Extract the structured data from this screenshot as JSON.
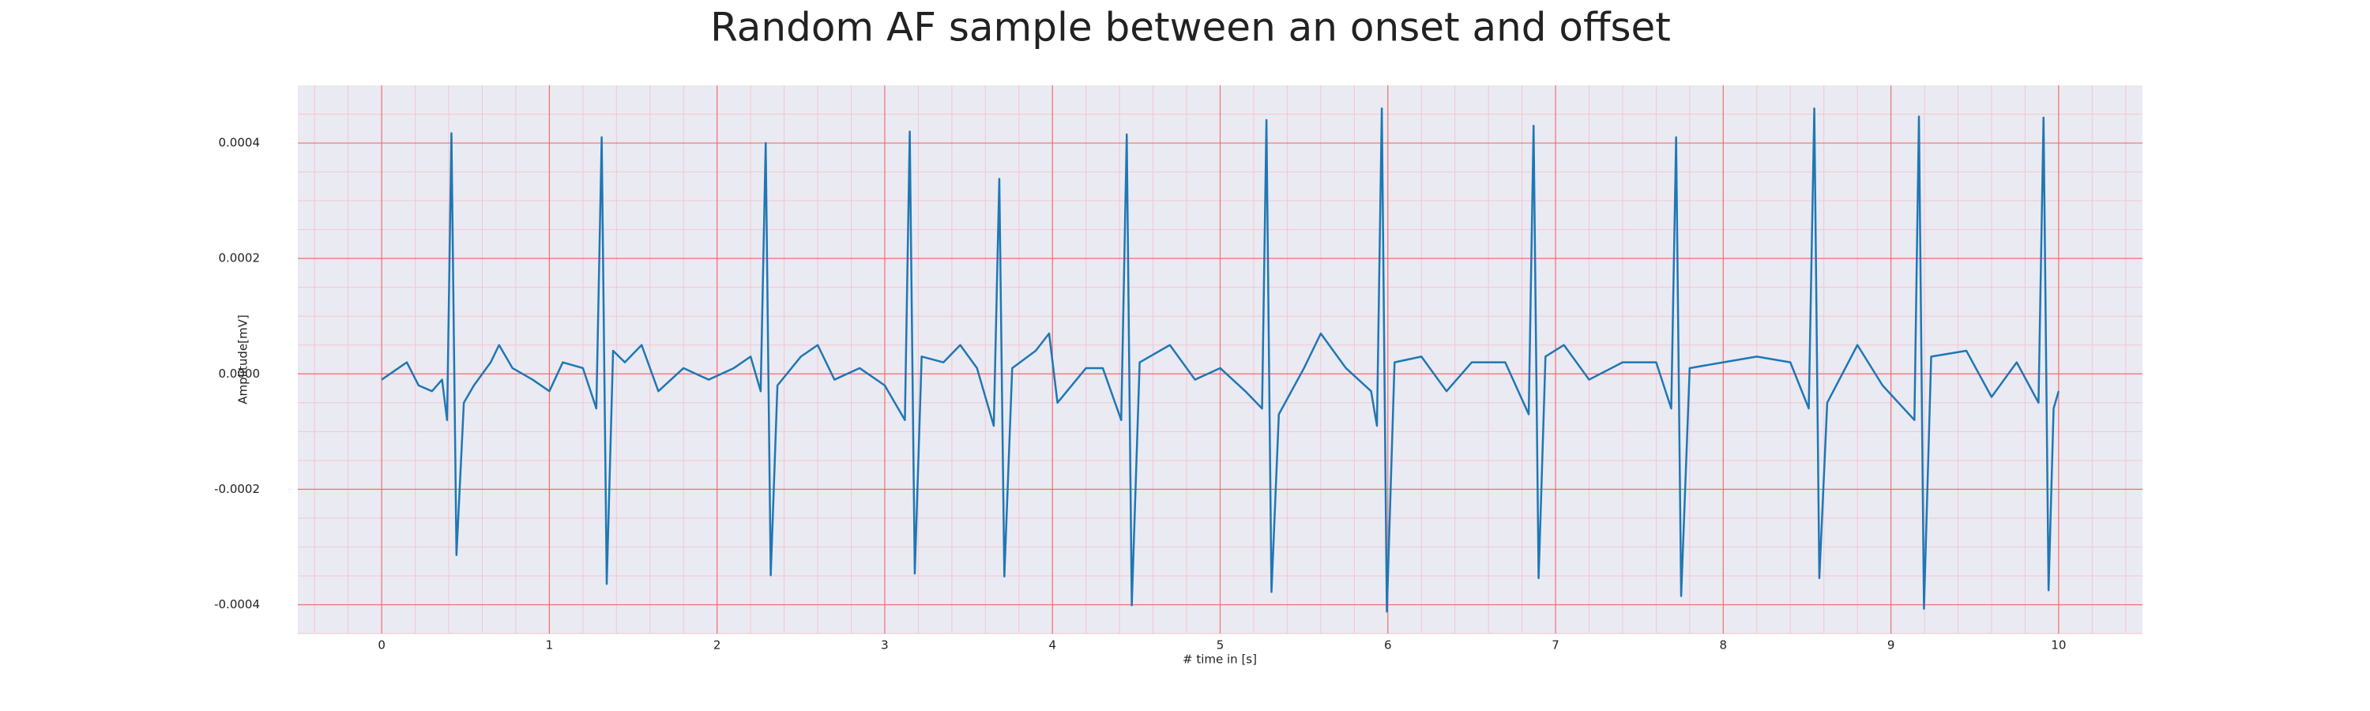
{
  "chart_data": {
    "type": "line",
    "title": "Random AF sample between an onset and offset",
    "xlabel": "# time in [s]",
    "ylabel": "Amplitude[mV]",
    "color": "#1f77b4",
    "grid": true,
    "xlim": [
      -0.5,
      10.5
    ],
    "ylim": [
      -0.00045,
      0.0005
    ],
    "xticks": [
      0,
      1,
      2,
      3,
      4,
      5,
      6,
      7,
      8,
      9,
      10
    ],
    "yticks": [
      -0.0004,
      -0.0002,
      {
        "value": 0,
        "label": "0.0000"
      },
      0.0002,
      0.0004
    ],
    "x": [
      0.0,
      0.1,
      0.15,
      0.22,
      0.3,
      0.36,
      0.39,
      0.416,
      0.446,
      0.49,
      0.55,
      0.65,
      0.7,
      0.78,
      0.9,
      1.0,
      1.08,
      1.2,
      1.28,
      1.312,
      1.342,
      1.38,
      1.45,
      1.55,
      1.65,
      1.8,
      1.95,
      2.1,
      2.2,
      2.26,
      2.29,
      2.32,
      2.36,
      2.5,
      2.6,
      2.7,
      2.85,
      3.0,
      3.12,
      3.149,
      3.179,
      3.22,
      3.35,
      3.45,
      3.55,
      3.65,
      3.683,
      3.713,
      3.76,
      3.9,
      3.98,
      4.03,
      4.2,
      4.3,
      4.41,
      4.443,
      4.473,
      4.52,
      4.7,
      4.85,
      5.0,
      5.15,
      5.25,
      5.276,
      5.306,
      5.35,
      5.5,
      5.6,
      5.75,
      5.9,
      5.935,
      5.964,
      5.994,
      6.04,
      6.2,
      6.35,
      6.5,
      6.7,
      6.84,
      6.869,
      6.899,
      6.94,
      7.05,
      7.2,
      7.4,
      7.6,
      7.69,
      7.719,
      7.749,
      7.8,
      8.0,
      8.2,
      8.4,
      8.51,
      8.543,
      8.573,
      8.62,
      8.8,
      8.95,
      9.14,
      9.167,
      9.197,
      9.24,
      9.45,
      9.6,
      9.75,
      9.88,
      9.91,
      9.94,
      9.97,
      10.0
    ],
    "values": [
      -1e-05,
      1e-05,
      2e-05,
      -2e-05,
      -3e-05,
      -1e-05,
      -8e-05,
      0.000417,
      -0.000314,
      -5e-05,
      -2e-05,
      2e-05,
      5e-05,
      1e-05,
      -1e-05,
      -3e-05,
      2e-05,
      1e-05,
      -6e-05,
      0.00041,
      -0.000364,
      4e-05,
      2e-05,
      5e-05,
      -3e-05,
      1e-05,
      -1e-05,
      1e-05,
      3e-05,
      -3e-05,
      0.0004,
      -0.000349,
      -2e-05,
      3e-05,
      5e-05,
      -1e-05,
      1e-05,
      -2e-05,
      -8e-05,
      0.00042,
      -0.000346,
      3e-05,
      2e-05,
      5e-05,
      1e-05,
      -9e-05,
      0.000338,
      -0.000351,
      1e-05,
      4e-05,
      7e-05,
      -5e-05,
      1e-05,
      1e-05,
      -8e-05,
      0.000415,
      -0.000401,
      2e-05,
      5e-05,
      -1e-05,
      1e-05,
      -3e-05,
      -6e-05,
      0.00044,
      -0.000378,
      -7e-05,
      1e-05,
      7e-05,
      1e-05,
      -3e-05,
      -9e-05,
      0.00046,
      -0.000412,
      2e-05,
      3e-05,
      -3e-05,
      2e-05,
      2e-05,
      -7e-05,
      0.00043,
      -0.000354,
      3e-05,
      5e-05,
      -1e-05,
      2e-05,
      2e-05,
      -6e-05,
      0.00041,
      -0.000385,
      1e-05,
      2e-05,
      3e-05,
      2e-05,
      -6e-05,
      0.00046,
      -0.000354,
      -5e-05,
      5e-05,
      -2e-05,
      -8e-05,
      0.000446,
      -0.000407,
      3e-05,
      4e-05,
      -4e-05,
      2e-05,
      -5e-05,
      0.000444,
      -0.000375,
      -6e-05,
      -3e-05
    ]
  }
}
